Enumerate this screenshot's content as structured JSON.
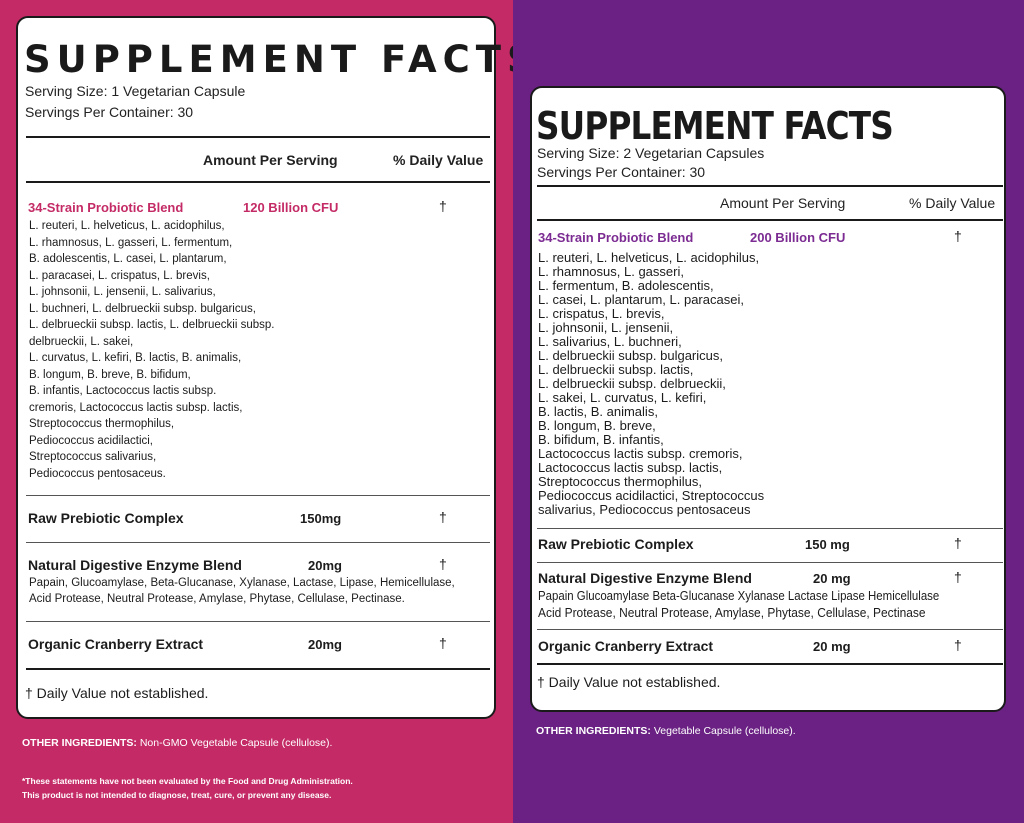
{
  "left": {
    "title": "SUPPLEMENT FACTS",
    "serving_size": "Serving Size: 1 Vegetarian Capsule",
    "servings_per_container": "Servings Per Container: 30",
    "header_amount": "Amount Per Serving",
    "header_dv": "% Daily Value",
    "blend_name": "34-Strain Probiotic Blend",
    "blend_amount": "120 Billion CFU",
    "blend_dv": "†",
    "strain_lines": [
      "L. reuteri, L. helveticus, L. acidophilus,",
      "L. rhamnosus, L. gasseri, L. fermentum,",
      "B. adolescentis, L. casei, L. plantarum,",
      "L. paracasei, L. crispatus, L. brevis,",
      "L. johnsonii, L. jensenii, L. salivarius,",
      "L. buchneri, L. delbrueckii subsp. bulgaricus,",
      "L. delbrueckii subsp. lactis, L. delbrueckii subsp.",
      "delbrueckii, L. sakei,",
      "L. curvatus, L. kefiri, B. lactis, B. animalis,",
      "B. longum, B. breve, B. bifidum,",
      "B. infantis, Lactococcus lactis subsp.",
      "cremoris, Lactococcus lactis subsp. lactis,",
      "Streptococcus thermophilus,",
      "Pediococcus acidilactici,",
      "Streptococcus salivarius,",
      "Pediococcus pentosaceus."
    ],
    "prebiotic_name": "Raw Prebiotic Complex",
    "prebiotic_amount": "150mg",
    "prebiotic_dv": "†",
    "enzyme_name": "Natural Digestive Enzyme Blend",
    "enzyme_amount": "20mg",
    "enzyme_dv": "†",
    "enzyme_lines": [
      "Papain, Glucoamylase, Beta-Glucanase, Xylanase, Lactase, Lipase, Hemicellulase,",
      "Acid Protease, Neutral Protease, Amylase, Phytase, Cellulase, Pectinase."
    ],
    "cranberry_name": "Organic Cranberry Extract",
    "cranberry_amount": "20mg",
    "cranberry_dv": "†",
    "footnote": "† Daily Value not established.",
    "other_label": "OTHER INGREDIENTS:",
    "other_value": " Non-GMO Vegetable Capsule (cellulose).",
    "disclaimer_line1": "*These statements have not been evaluated by the Food and Drug Administration.",
    "disclaimer_line2": "This product is not intended to diagnose, treat, cure, or prevent any disease.",
    "colors": {
      "background": "#c42b66",
      "accent": "#c42b66"
    }
  },
  "right": {
    "title": "SUPPLEMENT FACTS",
    "serving_size": "Serving Size: 2 Vegetarian Capsules",
    "servings_per_container": "Servings Per Container: 30",
    "header_amount": "Amount Per Serving",
    "header_dv": "% Daily Value",
    "blend_name": "34-Strain Probiotic Blend",
    "blend_amount": "200 Billion CFU",
    "blend_dv": "†",
    "strain_lines": [
      "L. reuteri, L. helveticus, L. acidophilus,",
      "L. rhamnosus, L. gasseri,",
      "L. fermentum, B. adolescentis,",
      "L. casei, L. plantarum, L. paracasei,",
      "L. crispatus, L. brevis,",
      "L. johnsonii, L. jensenii,",
      "L. salivarius, L. buchneri,",
      "L. delbrueckii subsp. bulgaricus,",
      "L. delbrueckii subsp. lactis,",
      "L. delbrueckii subsp. delbrueckii,",
      "L. sakei, L. curvatus, L. kefiri,",
      "B. lactis, B. animalis,",
      "B. longum, B. breve,",
      "B. bifidum, B. infantis,",
      "Lactococcus lactis subsp. cremoris,",
      "Lactococcus lactis subsp. lactis,",
      "Streptococcus thermophilus,",
      "Pediococcus acidilactici, Streptococcus",
      "salivarius, Pediococcus pentosaceus"
    ],
    "prebiotic_name": "Raw Prebiotic Complex",
    "prebiotic_amount": "150 mg",
    "prebiotic_dv": "†",
    "enzyme_name": "Natural Digestive Enzyme Blend",
    "enzyme_amount": "20 mg",
    "enzyme_dv": "†",
    "enzyme_lines": [
      "Papain Glucoamylase Beta-Glucanase Xylanase Lactase Lipase Hemicellulase",
      "Acid Protease, Neutral Protease, Amylase, Phytase, Cellulase, Pectinase"
    ],
    "cranberry_name": "Organic Cranberry Extract",
    "cranberry_amount": "20 mg",
    "cranberry_dv": "†",
    "footnote": "† Daily Value not established.",
    "other_label": "OTHER INGREDIENTS:",
    "other_value": " Vegetable Capsule (cellulose).",
    "colors": {
      "background": "#6a2183",
      "accent": "#7b2b92"
    }
  }
}
